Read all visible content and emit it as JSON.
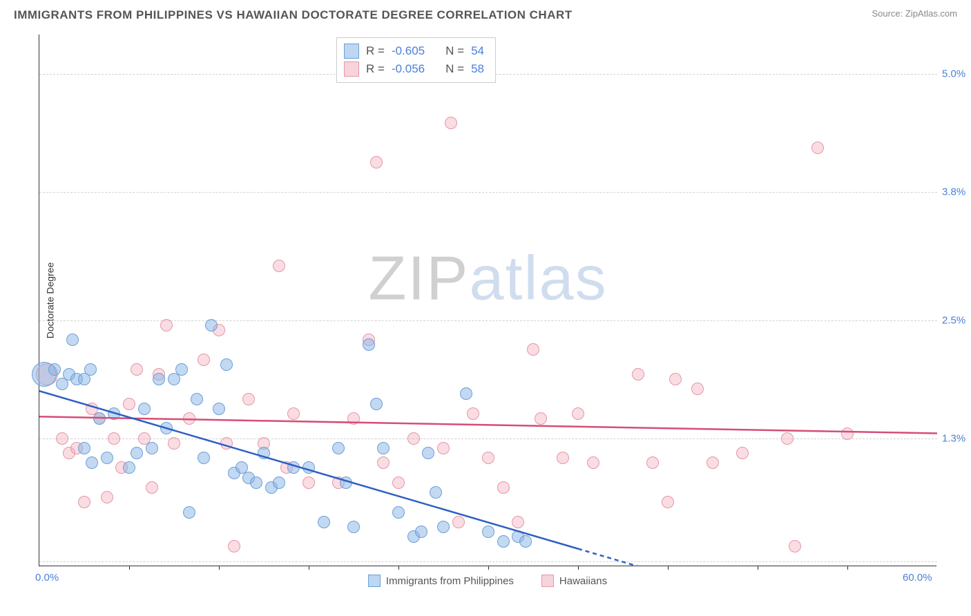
{
  "title": "IMMIGRANTS FROM PHILIPPINES VS HAWAIIAN DOCTORATE DEGREE CORRELATION CHART",
  "source_prefix": "Source: ",
  "source_name": "ZipAtlas.com",
  "watermark": {
    "z": "Z",
    "i": "I",
    "p": "P",
    "rest": "atlas"
  },
  "chart": {
    "type": "scatter",
    "ylabel": "Doctorate Degree",
    "x_min": 0.0,
    "x_max": 60.0,
    "y_min": 0.0,
    "y_max": 5.4,
    "x_ticks": [
      0.0,
      60.0
    ],
    "x_tick_labels": [
      "0.0%",
      "60.0%"
    ],
    "x_tick_marks": [
      6,
      12,
      18,
      24,
      30,
      36,
      42,
      48,
      54
    ],
    "y_gridlines": [
      0.05,
      1.3,
      2.5,
      3.8,
      5.0
    ],
    "y_tick_labels": [
      "",
      "1.3%",
      "2.5%",
      "3.8%",
      "5.0%"
    ],
    "colors": {
      "blue_fill": "rgba(135,180,230,0.5)",
      "blue_stroke": "#6a9fd8",
      "pink_fill": "rgba(240,170,185,0.4)",
      "pink_stroke": "#e695a8",
      "grid": "#d0d0d0",
      "axis": "#333333",
      "tick_text": "#4a7fd8",
      "trend_blue": "#2d5fc4",
      "trend_pink": "#d64d74"
    },
    "point_radius": 9,
    "big_point_radius": 18,
    "series_blue": {
      "name": "Immigrants from Philippines",
      "R": "-0.605",
      "N": "54",
      "trend": {
        "x1": 0,
        "y1": 1.78,
        "x2": 40,
        "y2": 0.0,
        "dashed_from_x": 36
      },
      "points": [
        {
          "x": 0.3,
          "y": 1.95,
          "r": 18
        },
        {
          "x": 1.0,
          "y": 2.0
        },
        {
          "x": 1.5,
          "y": 1.85
        },
        {
          "x": 2.0,
          "y": 1.95
        },
        {
          "x": 2.2,
          "y": 2.3
        },
        {
          "x": 2.5,
          "y": 1.9
        },
        {
          "x": 3.0,
          "y": 1.9
        },
        {
          "x": 3.4,
          "y": 2.0
        },
        {
          "x": 3.0,
          "y": 1.2
        },
        {
          "x": 3.5,
          "y": 1.05
        },
        {
          "x": 4.0,
          "y": 1.5
        },
        {
          "x": 4.5,
          "y": 1.1
        },
        {
          "x": 5.0,
          "y": 1.55
        },
        {
          "x": 6.0,
          "y": 1.0
        },
        {
          "x": 6.5,
          "y": 1.15
        },
        {
          "x": 7.0,
          "y": 1.6
        },
        {
          "x": 7.5,
          "y": 1.2
        },
        {
          "x": 8.0,
          "y": 1.9
        },
        {
          "x": 8.5,
          "y": 1.4
        },
        {
          "x": 9.0,
          "y": 1.9
        },
        {
          "x": 9.5,
          "y": 2.0
        },
        {
          "x": 10.0,
          "y": 0.55
        },
        {
          "x": 10.5,
          "y": 1.7
        },
        {
          "x": 11.0,
          "y": 1.1
        },
        {
          "x": 11.5,
          "y": 2.45
        },
        {
          "x": 12.0,
          "y": 1.6
        },
        {
          "x": 12.5,
          "y": 2.05
        },
        {
          "x": 13.0,
          "y": 0.95
        },
        {
          "x": 13.5,
          "y": 1.0
        },
        {
          "x": 14.0,
          "y": 0.9
        },
        {
          "x": 14.5,
          "y": 0.85
        },
        {
          "x": 15.0,
          "y": 1.15
        },
        {
          "x": 15.5,
          "y": 0.8
        },
        {
          "x": 16.0,
          "y": 0.85
        },
        {
          "x": 17.0,
          "y": 1.0
        },
        {
          "x": 18.0,
          "y": 1.0
        },
        {
          "x": 19.0,
          "y": 0.45
        },
        {
          "x": 20.0,
          "y": 1.2
        },
        {
          "x": 20.5,
          "y": 0.85
        },
        {
          "x": 21.0,
          "y": 0.4
        },
        {
          "x": 22.0,
          "y": 2.25
        },
        {
          "x": 22.5,
          "y": 1.65
        },
        {
          "x": 23.0,
          "y": 1.2
        },
        {
          "x": 24.0,
          "y": 0.55
        },
        {
          "x": 25.0,
          "y": 0.3
        },
        {
          "x": 25.5,
          "y": 0.35
        },
        {
          "x": 26.0,
          "y": 1.15
        },
        {
          "x": 26.5,
          "y": 0.75
        },
        {
          "x": 27.0,
          "y": 0.4
        },
        {
          "x": 28.5,
          "y": 1.75
        },
        {
          "x": 30.0,
          "y": 0.35
        },
        {
          "x": 31.0,
          "y": 0.25
        },
        {
          "x": 32.0,
          "y": 0.3
        },
        {
          "x": 32.5,
          "y": 0.25
        }
      ]
    },
    "series_pink": {
      "name": "Hawaiians",
      "R": "-0.056",
      "N": "58",
      "trend": {
        "x1": 0,
        "y1": 1.52,
        "x2": 60,
        "y2": 1.35
      },
      "points": [
        {
          "x": 0.5,
          "y": 1.95,
          "r": 16
        },
        {
          "x": 1.5,
          "y": 1.3
        },
        {
          "x": 2.0,
          "y": 1.15
        },
        {
          "x": 2.5,
          "y": 1.2
        },
        {
          "x": 3.0,
          "y": 0.65
        },
        {
          "x": 3.5,
          "y": 1.6
        },
        {
          "x": 4.0,
          "y": 1.5
        },
        {
          "x": 4.5,
          "y": 0.7
        },
        {
          "x": 5.0,
          "y": 1.3
        },
        {
          "x": 5.5,
          "y": 1.0
        },
        {
          "x": 6.0,
          "y": 1.65
        },
        {
          "x": 6.5,
          "y": 2.0
        },
        {
          "x": 7.0,
          "y": 1.3
        },
        {
          "x": 7.5,
          "y": 0.8
        },
        {
          "x": 8.0,
          "y": 1.95
        },
        {
          "x": 8.5,
          "y": 2.45
        },
        {
          "x": 9.0,
          "y": 1.25
        },
        {
          "x": 10.0,
          "y": 1.5
        },
        {
          "x": 11.0,
          "y": 2.1
        },
        {
          "x": 12.0,
          "y": 2.4
        },
        {
          "x": 12.5,
          "y": 1.25
        },
        {
          "x": 13.0,
          "y": 0.2
        },
        {
          "x": 14.0,
          "y": 1.7
        },
        {
          "x": 15.0,
          "y": 1.25
        },
        {
          "x": 16.0,
          "y": 3.05
        },
        {
          "x": 16.5,
          "y": 1.0
        },
        {
          "x": 17.0,
          "y": 1.55
        },
        {
          "x": 18.0,
          "y": 0.85
        },
        {
          "x": 20.0,
          "y": 0.85
        },
        {
          "x": 21.0,
          "y": 1.5
        },
        {
          "x": 22.0,
          "y": 2.3
        },
        {
          "x": 22.5,
          "y": 4.1
        },
        {
          "x": 23.0,
          "y": 1.05
        },
        {
          "x": 24.0,
          "y": 0.85
        },
        {
          "x": 25.0,
          "y": 1.3
        },
        {
          "x": 27.0,
          "y": 1.2
        },
        {
          "x": 27.5,
          "y": 4.5
        },
        {
          "x": 28.0,
          "y": 0.45
        },
        {
          "x": 29.0,
          "y": 1.55
        },
        {
          "x": 30.0,
          "y": 1.1
        },
        {
          "x": 31.0,
          "y": 0.8
        },
        {
          "x": 32.0,
          "y": 0.45
        },
        {
          "x": 33.0,
          "y": 2.2
        },
        {
          "x": 33.5,
          "y": 1.5
        },
        {
          "x": 35.0,
          "y": 1.1
        },
        {
          "x": 36.0,
          "y": 1.55
        },
        {
          "x": 37.0,
          "y": 1.05
        },
        {
          "x": 40.0,
          "y": 1.95
        },
        {
          "x": 41.0,
          "y": 1.05
        },
        {
          "x": 42.0,
          "y": 0.65
        },
        {
          "x": 42.5,
          "y": 1.9
        },
        {
          "x": 44.0,
          "y": 1.8
        },
        {
          "x": 45.0,
          "y": 1.05
        },
        {
          "x": 47.0,
          "y": 1.15
        },
        {
          "x": 50.0,
          "y": 1.3
        },
        {
          "x": 50.5,
          "y": 0.2
        },
        {
          "x": 52.0,
          "y": 4.25
        },
        {
          "x": 54.0,
          "y": 1.35
        }
      ]
    }
  },
  "bottom_legend": {
    "blue": "Immigrants from Philippines",
    "pink": "Hawaiians"
  },
  "stats_labels": {
    "R": "R =",
    "N": "N ="
  }
}
